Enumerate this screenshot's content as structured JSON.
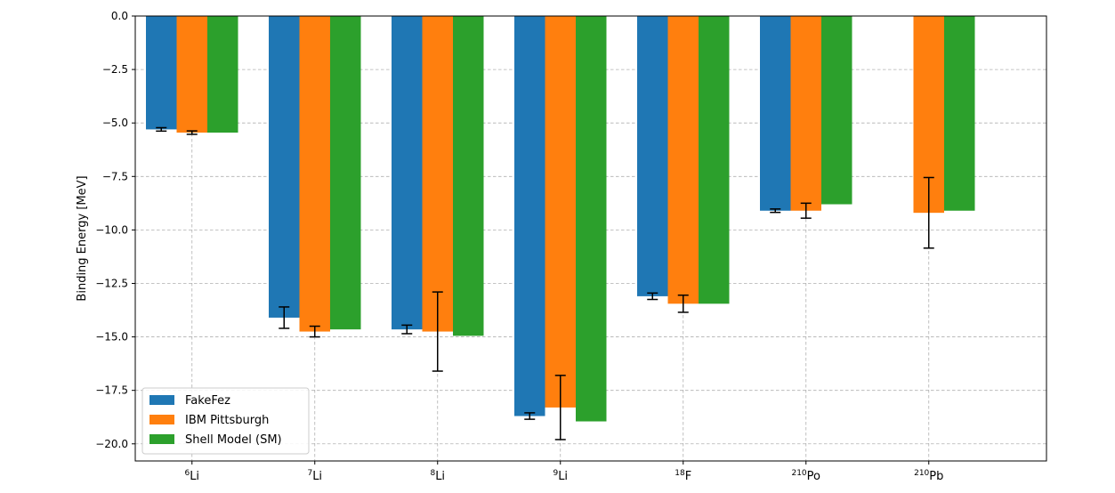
{
  "chart_data": {
    "type": "bar",
    "title": "",
    "xlabel": "",
    "ylabel": "Binding Energy [MeV]",
    "ylim": [
      -20.8,
      0.0
    ],
    "yticks": [
      0.0,
      -2.5,
      -5.0,
      -7.5,
      -10.0,
      -12.5,
      -15.0,
      -17.5,
      -20.0
    ],
    "ytick_labels": [
      "0.0",
      "−2.5",
      "−5.0",
      "−7.5",
      "−10.0",
      "−12.5",
      "−15.0",
      "−17.5",
      "−20.0"
    ],
    "grid": true,
    "legend_position": "lower-left",
    "categories": [
      {
        "sup": "6",
        "base": "Li"
      },
      {
        "sup": "7",
        "base": "Li"
      },
      {
        "sup": "8",
        "base": "Li"
      },
      {
        "sup": "9",
        "base": "Li"
      },
      {
        "sup": "18",
        "base": "F"
      },
      {
        "sup": "210",
        "base": "Po"
      },
      {
        "sup": "210",
        "base": "Pb"
      }
    ],
    "series": [
      {
        "name": "FakeFez",
        "color": "#1f77b4",
        "values": [
          -5.3,
          -14.1,
          -14.65,
          -18.7,
          -13.1,
          -9.1,
          null
        ],
        "errors": [
          0.08,
          0.5,
          0.2,
          0.15,
          0.15,
          0.08,
          null
        ]
      },
      {
        "name": "IBM Pittsburgh",
        "color": "#ff7f0e",
        "values": [
          -5.45,
          -14.75,
          -14.75,
          -18.3,
          -13.45,
          -9.1,
          -9.2
        ],
        "errors": [
          0.08,
          0.25,
          1.85,
          1.5,
          0.4,
          0.35,
          1.65
        ]
      },
      {
        "name": "Shell Model (SM)",
        "color": "#2ca02c",
        "values": [
          -5.45,
          -14.65,
          -14.95,
          -18.95,
          -13.45,
          -8.8,
          -9.1
        ],
        "errors": [
          null,
          null,
          null,
          null,
          null,
          null,
          null
        ]
      }
    ]
  }
}
